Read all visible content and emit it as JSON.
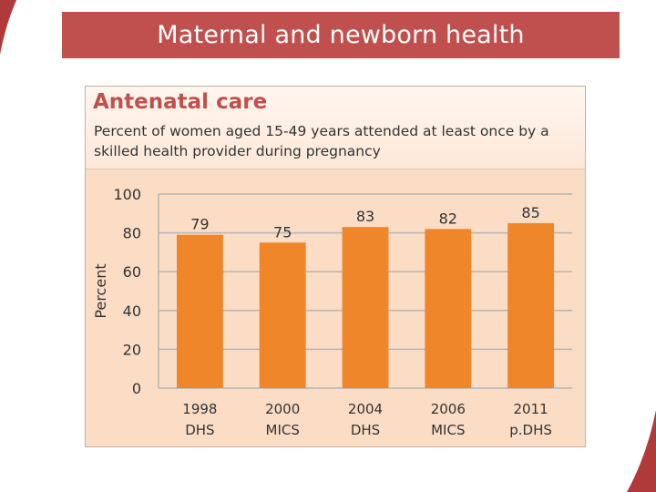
{
  "slide": {
    "title": "Maternal and newborn health",
    "accent_color": "#c0504d",
    "panel_color": "#fbdcc5",
    "bar_color": "#f0862a"
  },
  "chart_data": {
    "type": "bar",
    "title": "Antenatal care",
    "subtitle": "Percent of women aged 15-49 years attended at least once by a skilled health provider during pregnancy",
    "categories": [
      [
        "1998",
        "DHS"
      ],
      [
        "2000",
        "MICS"
      ],
      [
        "2004",
        "DHS"
      ],
      [
        "2006",
        "MICS"
      ],
      [
        "2011",
        "p.DHS"
      ]
    ],
    "values": [
      79,
      75,
      83,
      82,
      85
    ],
    "ylabel": "Percent",
    "xlabel": "",
    "ylim": [
      0,
      100
    ],
    "yticks": [
      0,
      20,
      40,
      60,
      80,
      100
    ],
    "grid": true,
    "legend": "none"
  }
}
